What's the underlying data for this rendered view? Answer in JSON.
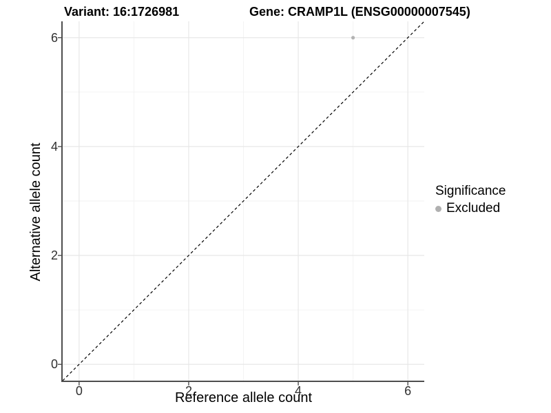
{
  "title": {
    "variant": "Variant: 16:1726981",
    "gene": "Gene: CRAMP1L (ENSG00000007545)"
  },
  "axes": {
    "x": {
      "label": "Reference allele count"
    },
    "y": {
      "label": "Alternative allele count"
    }
  },
  "legend": {
    "title": "Significance",
    "items": [
      {
        "label": "Excluded",
        "color": "#b0b0b0"
      }
    ]
  },
  "colors": {
    "background": "#ffffff",
    "grid_major": "#e7e7e7",
    "grid_minor": "#f2f2f2",
    "axis_line": "#4d4d4d",
    "tick_mark": "#333333",
    "tick_label": "#303030",
    "text": "#000000",
    "point": "#b3b3b3",
    "reference_line": "#000000"
  },
  "chart_data": {
    "type": "scatter",
    "title": "Variant: 16:1726981 | Gene: CRAMP1L (ENSG00000007545)",
    "xlabel": "Reference allele count",
    "ylabel": "Alternative allele count",
    "xlim": [
      -0.3,
      6.3
    ],
    "ylim": [
      -0.3,
      6.3
    ],
    "x_ticks": [
      0,
      2,
      4,
      6
    ],
    "y_ticks": [
      0,
      2,
      4,
      6
    ],
    "x_minor_ticks": [
      1,
      3,
      5
    ],
    "y_minor_ticks": [
      1,
      3,
      5
    ],
    "grid": true,
    "legend_position": "right",
    "series": [
      {
        "name": "Excluded",
        "color": "#b3b3b3",
        "point_radius": 2.6,
        "points": [
          {
            "x": 5,
            "y": 6
          }
        ]
      }
    ],
    "reference_line": {
      "type": "identity y=x",
      "from": [
        -0.3,
        -0.3
      ],
      "to": [
        6.3,
        6.3
      ],
      "style": "dashed",
      "color": "#000000"
    }
  }
}
